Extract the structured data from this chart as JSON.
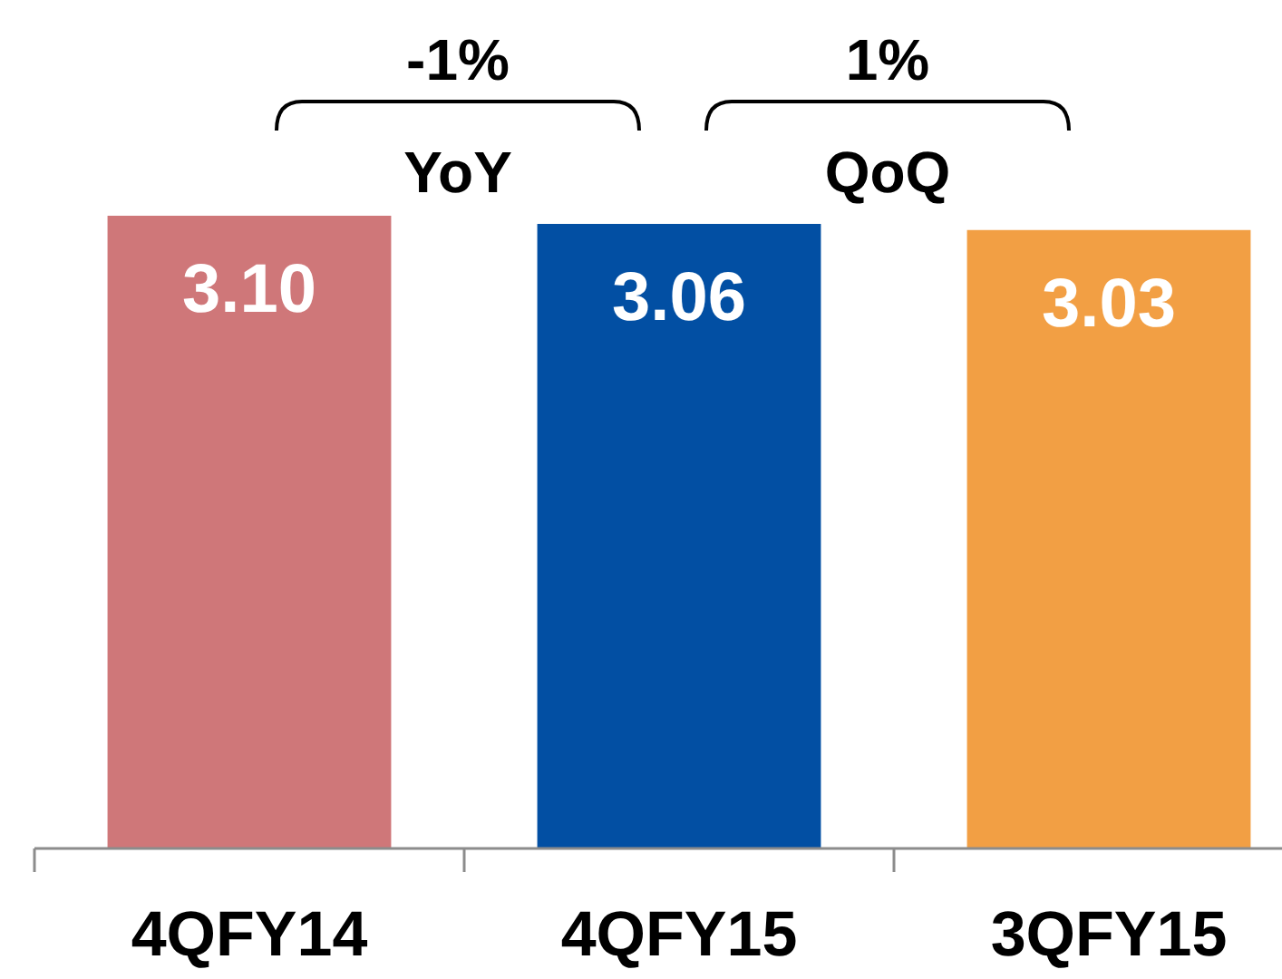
{
  "chart_data": {
    "type": "bar",
    "categories": [
      "4QFY14",
      "4QFY15",
      "3QFY15"
    ],
    "values": [
      3.1,
      3.06,
      3.03
    ],
    "value_labels": [
      "3.10",
      "3.06",
      "3.03"
    ],
    "colors": [
      "#cf7779",
      "#024fa3",
      "#f29f44"
    ],
    "tick_labels": "x",
    "annotations": [
      "-1%",
      "YoY",
      "1%",
      "QoQ"
    ]
  }
}
